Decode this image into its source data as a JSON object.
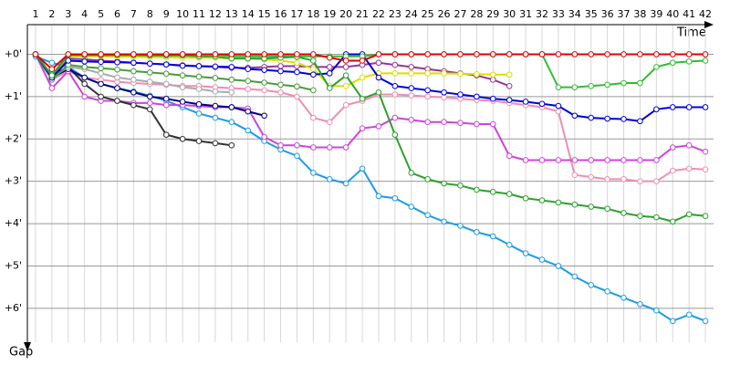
{
  "chart_data": {
    "type": "line",
    "x_label": "Time",
    "y_label": "Gap",
    "x": [
      1,
      2,
      3,
      4,
      5,
      6,
      7,
      8,
      9,
      10,
      11,
      12,
      13,
      14,
      15,
      16,
      17,
      18,
      19,
      20,
      21,
      22,
      23,
      24,
      25,
      26,
      27,
      28,
      29,
      30,
      31,
      32,
      33,
      34,
      35,
      36,
      37,
      38,
      39,
      40,
      41,
      42
    ],
    "xlim": [
      0.5,
      42.5
    ],
    "xticks": [
      1,
      2,
      3,
      4,
      5,
      6,
      7,
      8,
      9,
      10,
      11,
      12,
      13,
      14,
      15,
      16,
      17,
      18,
      19,
      20,
      21,
      22,
      23,
      24,
      25,
      26,
      27,
      28,
      29,
      30,
      31,
      32,
      33,
      34,
      35,
      36,
      37,
      38,
      39,
      40,
      41,
      42
    ],
    "ylim": [
      -0.7,
      6.8
    ],
    "yticks": [
      {
        "value": 0,
        "label": "+0'"
      },
      {
        "value": 1,
        "label": "+1'"
      },
      {
        "value": 2,
        "label": "+2'"
      },
      {
        "value": 3,
        "label": "+3'"
      },
      {
        "value": 4,
        "label": "+4'"
      },
      {
        "value": 5,
        "label": "+5'"
      },
      {
        "value": 6,
        "label": "+6'"
      }
    ],
    "grid": true,
    "y_inverted": true,
    "series": [
      {
        "color": "#1e9be6",
        "values": [
          0.05,
          0.2,
          0.3,
          0.55,
          0.7,
          0.8,
          0.88,
          0.98,
          1.1,
          1.25,
          1.4,
          1.5,
          1.6,
          1.8,
          2.05,
          2.25,
          2.4,
          2.8,
          2.95,
          3.05,
          2.7,
          3.35,
          3.4,
          3.6,
          3.8,
          3.95,
          4.05,
          4.2,
          4.3,
          4.5,
          4.7,
          4.85,
          5.0,
          5.25,
          5.45,
          5.6,
          5.75,
          5.9,
          6.05,
          6.3,
          6.15,
          6.3
        ]
      },
      {
        "color": "#f08cb4",
        "values": [
          0,
          0.6,
          0.4,
          0.55,
          0.6,
          0.65,
          0.68,
          0.7,
          0.72,
          0.75,
          0.75,
          0.78,
          0.8,
          0.82,
          0.85,
          0.9,
          1.0,
          1.5,
          1.6,
          1.2,
          1.1,
          0.95,
          0.95,
          0.97,
          1.0,
          1.02,
          1.05,
          1.08,
          1.1,
          1.15,
          1.2,
          1.25,
          1.35,
          2.85,
          2.9,
          2.95,
          2.95,
          3.0,
          3.0,
          2.75,
          2.7,
          2.72
        ]
      },
      {
        "color": "#cc44dd",
        "values": [
          0,
          0.8,
          0.4,
          1.0,
          1.1,
          1.1,
          1.15,
          1.15,
          1.2,
          1.2,
          1.22,
          1.25,
          1.25,
          1.28,
          1.95,
          2.15,
          2.15,
          2.2,
          2.2,
          2.2,
          1.75,
          1.7,
          1.5,
          1.55,
          1.6,
          1.6,
          1.62,
          1.65,
          1.65,
          2.4,
          2.5,
          2.5,
          2.5,
          2.5,
          2.5,
          2.5,
          2.5,
          2.5,
          2.5,
          2.2,
          2.15,
          2.3
        ]
      },
      {
        "color": "#333333",
        "values": [
          0,
          0.5,
          0.3,
          0.7,
          1.0,
          1.1,
          1.2,
          1.3,
          1.9,
          2.0,
          2.05,
          2.1,
          2.15,
          null,
          null,
          null,
          null,
          null,
          null,
          null,
          null,
          null,
          null,
          null,
          null,
          null,
          null,
          null,
          null,
          null,
          null,
          null,
          null,
          null,
          null,
          null,
          null,
          null,
          null,
          null,
          null,
          null
        ]
      },
      {
        "color": "#000080",
        "values": [
          0,
          0.55,
          0.35,
          0.55,
          0.7,
          0.8,
          0.9,
          1.0,
          1.05,
          1.12,
          1.18,
          1.22,
          1.25,
          1.35,
          1.45,
          null,
          null,
          null,
          null,
          null,
          null,
          null,
          null,
          null,
          null,
          null,
          null,
          null,
          null,
          null,
          null,
          null,
          null,
          null,
          null,
          null,
          null,
          null,
          null,
          null,
          null,
          null
        ]
      },
      {
        "color": "#aaaaaa",
        "values": [
          0,
          0.55,
          0.3,
          0.35,
          0.45,
          0.55,
          0.6,
          0.65,
          0.7,
          0.78,
          0.82,
          0.88,
          0.9,
          null,
          null,
          null,
          null,
          null,
          null,
          null,
          null,
          null,
          null,
          null,
          null,
          null,
          null,
          null,
          null,
          null,
          null,
          null,
          null,
          null,
          null,
          null,
          null,
          null,
          null,
          null,
          null,
          null
        ]
      },
      {
        "color": "#4a9a3a",
        "values": [
          0,
          0.6,
          0.25,
          0.3,
          0.33,
          0.36,
          0.4,
          0.43,
          0.46,
          0.5,
          0.53,
          0.56,
          0.6,
          0.63,
          0.67,
          0.72,
          0.76,
          0.85,
          null,
          null,
          null,
          null,
          null,
          null,
          null,
          null,
          null,
          null,
          null,
          null,
          null,
          null,
          null,
          null,
          null,
          null,
          null,
          null,
          null,
          null,
          null,
          null
        ]
      },
      {
        "color": "#993399",
        "values": [
          0,
          0.55,
          0.1,
          0.12,
          0.15,
          0.17,
          0.2,
          0.22,
          0.24,
          0.26,
          0.28,
          0.3,
          0.32,
          0.32,
          0.3,
          0.28,
          0.28,
          0.3,
          0.3,
          0.3,
          0.25,
          0.2,
          0.25,
          0.3,
          0.35,
          0.4,
          0.45,
          0.5,
          0.6,
          0.75,
          null,
          null,
          null,
          null,
          null,
          null,
          null,
          null,
          null,
          null,
          null,
          null
        ]
      },
      {
        "color": "#dddd00",
        "values": [
          0,
          0.5,
          0.05,
          0.05,
          0.05,
          0.06,
          0.06,
          0.07,
          0.07,
          0.08,
          0.08,
          0.08,
          0.1,
          0.1,
          0.12,
          0.15,
          0.2,
          0.35,
          0.75,
          0.75,
          0.55,
          0.45,
          0.45,
          0.45,
          0.45,
          0.45,
          0.46,
          0.47,
          0.48,
          0.48,
          null,
          null,
          null,
          null,
          null,
          null,
          null,
          null,
          null,
          null,
          null,
          null
        ]
      },
      {
        "color": "#0000dd",
        "values": [
          0,
          0.55,
          0.15,
          0.17,
          0.18,
          0.19,
          0.2,
          0.22,
          0.24,
          0.27,
          0.28,
          0.29,
          0.3,
          0.35,
          0.37,
          0.4,
          0.42,
          0.48,
          0.45,
          0,
          0,
          0.55,
          0.75,
          0.8,
          0.85,
          0.9,
          0.95,
          1.0,
          1.05,
          1.08,
          1.12,
          1.17,
          1.22,
          1.45,
          1.5,
          1.52,
          1.53,
          1.58,
          1.3,
          1.25,
          1.25,
          1.25
        ]
      },
      {
        "color": "#33bb33",
        "values": [
          0,
          0.5,
          0,
          0,
          0,
          0,
          0,
          0,
          0,
          0,
          0,
          0,
          0.05,
          0.05,
          0.05,
          0.05,
          0.05,
          0.05,
          0.05,
          0.05,
          0.05,
          0,
          0,
          0,
          0,
          0,
          0,
          0,
          0,
          0,
          0,
          0,
          0.78,
          0.78,
          0.75,
          0.72,
          0.68,
          0.68,
          0.3,
          0.2,
          0.17,
          0.15
        ]
      },
      {
        "color": "#2ca02c",
        "values": [
          0,
          0.5,
          0.02,
          0.02,
          0.02,
          0.02,
          0.02,
          0.03,
          0.03,
          0.03,
          0.05,
          0.05,
          0.1,
          0.1,
          0.1,
          0.08,
          0.06,
          0.15,
          0.8,
          0.5,
          1.05,
          0.9,
          1.9,
          2.8,
          2.95,
          3.05,
          3.1,
          3.2,
          3.25,
          3.3,
          3.4,
          3.45,
          3.5,
          3.55,
          3.6,
          3.65,
          3.75,
          3.82,
          3.85,
          3.95,
          3.78,
          3.82
        ]
      },
      {
        "color": "#e00000",
        "values": [
          0,
          0.35,
          0,
          0,
          0,
          0,
          0,
          0,
          0,
          0,
          0,
          0,
          0,
          0,
          0,
          0,
          0,
          0,
          0.08,
          0.15,
          0.15,
          0,
          0,
          0,
          0,
          0,
          0,
          0,
          0,
          0,
          0,
          0,
          0,
          0,
          0,
          0,
          0,
          0,
          0,
          0,
          0,
          0
        ]
      }
    ]
  }
}
